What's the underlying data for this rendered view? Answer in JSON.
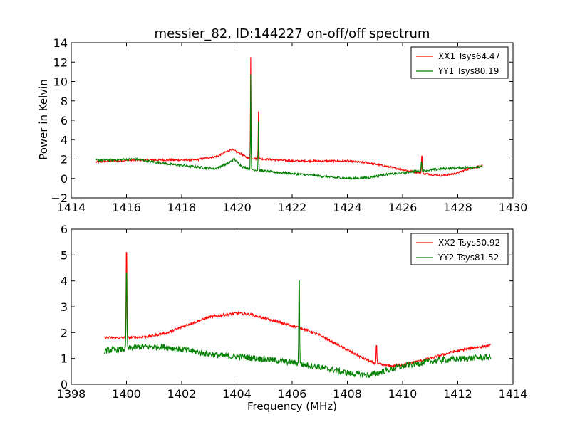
{
  "title": "messier_82, ID:144227 on-off/off spectrum",
  "xlabel": "Frequency (MHz)",
  "ylabel": "Power in Kelvin",
  "colors": {
    "xx": "#ff0000",
    "yy": "#007f00"
  },
  "chart_data": [
    {
      "type": "line",
      "panel": "top",
      "xlim": [
        1414,
        1430
      ],
      "ylim": [
        -2,
        14
      ],
      "xticks": [
        1414,
        1416,
        1418,
        1420,
        1422,
        1424,
        1426,
        1428,
        1430
      ],
      "yticks": [
        -2,
        0,
        2,
        4,
        6,
        8,
        10,
        12,
        14
      ],
      "x_range": [
        1414.9,
        1428.9
      ],
      "legend_position": "upper right",
      "series": [
        {
          "name": "XX1 Tsys64.47",
          "color_key": "xx",
          "baseline": [
            [
              1414.9,
              1.7
            ],
            [
              1415.5,
              1.8
            ],
            [
              1416.5,
              1.9
            ],
            [
              1417.5,
              1.9
            ],
            [
              1418.5,
              1.9
            ],
            [
              1419.3,
              2.3
            ],
            [
              1419.8,
              3.0
            ],
            [
              1420.1,
              2.6
            ],
            [
              1420.4,
              2.1
            ],
            [
              1421.0,
              2.0
            ],
            [
              1422.0,
              1.8
            ],
            [
              1423.0,
              1.8
            ],
            [
              1424.0,
              1.8
            ],
            [
              1424.8,
              1.6
            ],
            [
              1425.5,
              1.2
            ],
            [
              1426.2,
              0.8
            ],
            [
              1426.8,
              0.5
            ],
            [
              1427.4,
              0.3
            ],
            [
              1427.9,
              0.5
            ],
            [
              1428.4,
              1.0
            ],
            [
              1428.9,
              1.3
            ]
          ],
          "spikes": [
            [
              1420.5,
              12.5
            ],
            [
              1420.78,
              6.9
            ],
            [
              1426.7,
              2.3
            ]
          ],
          "noise": 0.1
        },
        {
          "name": "YY1 Tsys80.19",
          "color_key": "yy",
          "baseline": [
            [
              1414.9,
              1.9
            ],
            [
              1415.5,
              1.9
            ],
            [
              1416.3,
              2.0
            ],
            [
              1417.0,
              1.7
            ],
            [
              1417.5,
              1.5
            ],
            [
              1418.5,
              1.2
            ],
            [
              1419.2,
              1.0
            ],
            [
              1419.7,
              1.6
            ],
            [
              1419.9,
              2.0
            ],
            [
              1420.2,
              1.2
            ],
            [
              1420.6,
              0.9
            ],
            [
              1421.2,
              0.7
            ],
            [
              1422.0,
              0.5
            ],
            [
              1422.8,
              0.3
            ],
            [
              1423.5,
              0.1
            ],
            [
              1424.2,
              0.0
            ],
            [
              1424.8,
              0.1
            ],
            [
              1425.3,
              0.4
            ],
            [
              1425.8,
              0.5
            ],
            [
              1426.3,
              0.7
            ],
            [
              1426.8,
              0.8
            ],
            [
              1427.4,
              1.0
            ],
            [
              1428.0,
              1.1
            ],
            [
              1428.9,
              1.2
            ]
          ],
          "spikes": [
            [
              1420.5,
              10.7
            ],
            [
              1420.78,
              5.9
            ],
            [
              1426.68,
              1.7
            ]
          ],
          "noise": 0.12
        }
      ]
    },
    {
      "type": "line",
      "panel": "bottom",
      "xlim": [
        1398,
        1414
      ],
      "ylim": [
        0,
        6
      ],
      "xticks": [
        1398,
        1400,
        1402,
        1404,
        1406,
        1408,
        1410,
        1412,
        1414
      ],
      "yticks": [
        0,
        1,
        2,
        3,
        4,
        5,
        6
      ],
      "x_range": [
        1399.2,
        1413.2
      ],
      "legend_position": "upper right",
      "series": [
        {
          "name": "XX2 Tsys50.92",
          "color_key": "xx",
          "baseline": [
            [
              1399.2,
              1.8
            ],
            [
              1400.0,
              1.8
            ],
            [
              1400.8,
              1.85
            ],
            [
              1401.5,
              2.0
            ],
            [
              1402.2,
              2.3
            ],
            [
              1403.0,
              2.6
            ],
            [
              1404.0,
              2.75
            ],
            [
              1404.5,
              2.7
            ],
            [
              1405.0,
              2.55
            ],
            [
              1405.7,
              2.35
            ],
            [
              1406.4,
              2.15
            ],
            [
              1407.0,
              1.9
            ],
            [
              1407.7,
              1.5
            ],
            [
              1408.4,
              1.1
            ],
            [
              1409.0,
              0.8
            ],
            [
              1409.6,
              0.7
            ],
            [
              1410.2,
              0.8
            ],
            [
              1411.0,
              1.0
            ],
            [
              1411.8,
              1.25
            ],
            [
              1412.5,
              1.4
            ],
            [
              1413.2,
              1.5
            ]
          ],
          "spikes": [
            [
              1400.0,
              5.1
            ],
            [
              1409.05,
              1.5
            ]
          ],
          "noise": 0.05
        },
        {
          "name": "YY2 Tsys81.52",
          "color_key": "yy",
          "baseline": [
            [
              1399.2,
              1.3
            ],
            [
              1399.8,
              1.35
            ],
            [
              1400.5,
              1.45
            ],
            [
              1401.3,
              1.45
            ],
            [
              1402.0,
              1.35
            ],
            [
              1402.8,
              1.2
            ],
            [
              1403.5,
              1.1
            ],
            [
              1404.3,
              1.05
            ],
            [
              1405.2,
              0.95
            ],
            [
              1406.0,
              0.85
            ],
            [
              1406.8,
              0.7
            ],
            [
              1407.5,
              0.55
            ],
            [
              1408.2,
              0.4
            ],
            [
              1408.8,
              0.35
            ],
            [
              1409.3,
              0.5
            ],
            [
              1410.0,
              0.7
            ],
            [
              1410.8,
              0.85
            ],
            [
              1411.5,
              0.95
            ],
            [
              1412.2,
              1.0
            ],
            [
              1413.2,
              1.05
            ]
          ],
          "spikes": [
            [
              1400.0,
              4.3
            ],
            [
              1406.25,
              4.0
            ]
          ],
          "noise": 0.12
        }
      ]
    }
  ]
}
